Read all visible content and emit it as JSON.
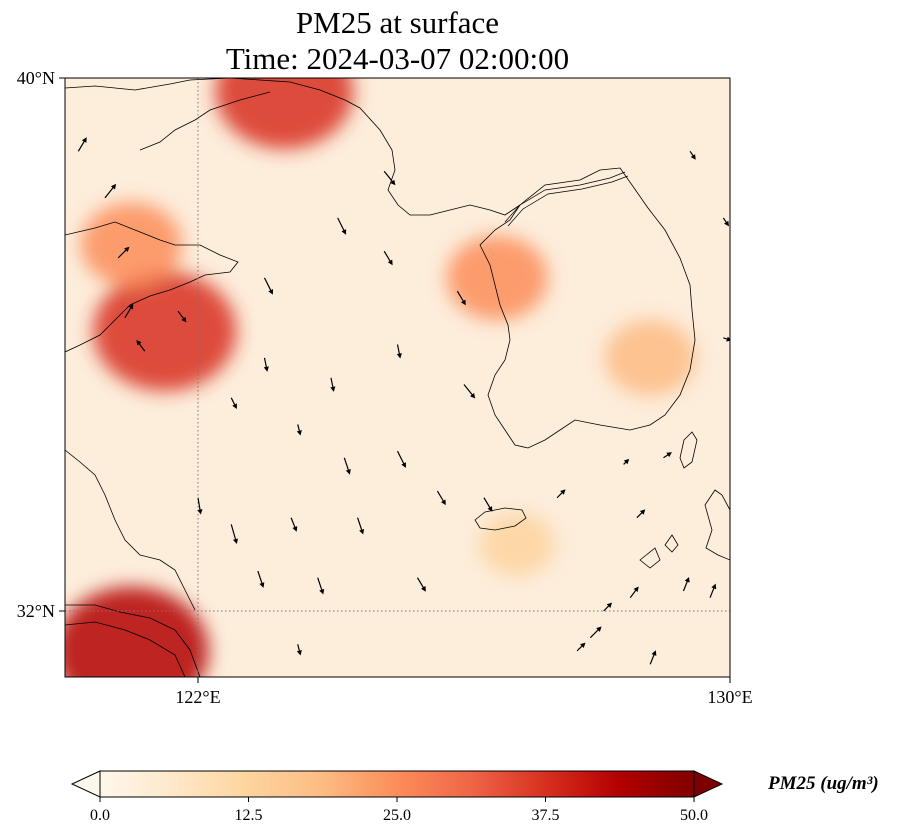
{
  "title": {
    "line1": "PM25 at surface",
    "line2": "Time: 2024-03-07 02:00:00"
  },
  "map": {
    "lon_range": [
      120,
      130
    ],
    "lat_range": [
      31,
      40
    ],
    "lon_ticks": [
      "122°E",
      "130°E"
    ],
    "lat_ticks": [
      "40°N",
      "32°N"
    ],
    "gridlines": "dotted at 122°E and 32°N"
  },
  "colorbar": {
    "label": "PM25 (ug/m³)",
    "ticks": [
      "0.0",
      "12.5",
      "25.0",
      "37.5",
      "50.0"
    ],
    "min": 0,
    "max": 50,
    "extend": "both",
    "colormap": "OrRd",
    "colors": [
      "#fff7ec",
      "#fee8c8",
      "#fdd49e",
      "#fdbb84",
      "#fc8d59",
      "#ef6548",
      "#d7301f",
      "#b30000",
      "#7f0000"
    ]
  },
  "chart_data": {
    "type": "heatmap",
    "variable": "PM25",
    "units": "ug/m3",
    "x_unit": "degrees East longitude",
    "y_unit": "degrees North latitude",
    "hotspots": [
      {
        "lon": 121.5,
        "lat": 36.2,
        "value": 38
      },
      {
        "lon": 121.0,
        "lat": 31.4,
        "value": 42
      },
      {
        "lon": 123.3,
        "lat": 39.8,
        "value": 36
      },
      {
        "lon": 121.0,
        "lat": 37.5,
        "value": 22
      },
      {
        "lon": 126.5,
        "lat": 37.0,
        "value": 22
      },
      {
        "lon": 128.8,
        "lat": 35.8,
        "value": 18
      },
      {
        "lon": 126.8,
        "lat": 33.0,
        "value": 12
      }
    ],
    "background_value": 5,
    "wind_vectors": [
      {
        "lon": 120.2,
        "lat": 38.9,
        "u": 0.3,
        "v": 0.5
      },
      {
        "lon": 120.6,
        "lat": 38.2,
        "u": 0.4,
        "v": 0.5
      },
      {
        "lon": 120.8,
        "lat": 37.3,
        "u": 0.4,
        "v": 0.4
      },
      {
        "lon": 120.9,
        "lat": 36.4,
        "u": 0.3,
        "v": 0.5
      },
      {
        "lon": 121.2,
        "lat": 35.9,
        "u": -0.3,
        "v": 0.4
      },
      {
        "lon": 121.7,
        "lat": 36.5,
        "u": 0.3,
        "v": -0.4
      },
      {
        "lon": 122.0,
        "lat": 33.7,
        "u": 0.1,
        "v": -0.6
      },
      {
        "lon": 122.5,
        "lat": 33.3,
        "u": 0.2,
        "v": -0.7
      },
      {
        "lon": 122.9,
        "lat": 32.6,
        "u": 0.2,
        "v": -0.6
      },
      {
        "lon": 122.5,
        "lat": 35.2,
        "u": 0.2,
        "v": -0.4
      },
      {
        "lon": 123.0,
        "lat": 37.0,
        "u": 0.3,
        "v": -0.6
      },
      {
        "lon": 123.0,
        "lat": 35.8,
        "u": 0.1,
        "v": -0.5
      },
      {
        "lon": 123.5,
        "lat": 34.8,
        "u": 0.1,
        "v": -0.4
      },
      {
        "lon": 123.4,
        "lat": 33.4,
        "u": 0.2,
        "v": -0.5
      },
      {
        "lon": 123.8,
        "lat": 32.5,
        "u": 0.2,
        "v": -0.6
      },
      {
        "lon": 123.5,
        "lat": 31.5,
        "u": 0.1,
        "v": -0.4
      },
      {
        "lon": 124.1,
        "lat": 37.9,
        "u": 0.3,
        "v": -0.6
      },
      {
        "lon": 124.0,
        "lat": 35.5,
        "u": 0.1,
        "v": -0.5
      },
      {
        "lon": 124.2,
        "lat": 34.3,
        "u": 0.2,
        "v": -0.6
      },
      {
        "lon": 124.4,
        "lat": 33.4,
        "u": 0.2,
        "v": -0.6
      },
      {
        "lon": 124.8,
        "lat": 38.6,
        "u": 0.4,
        "v": -0.5
      },
      {
        "lon": 124.8,
        "lat": 37.4,
        "u": 0.3,
        "v": -0.5
      },
      {
        "lon": 125.0,
        "lat": 36.0,
        "u": 0.1,
        "v": -0.5
      },
      {
        "lon": 125.0,
        "lat": 34.4,
        "u": 0.3,
        "v": -0.6
      },
      {
        "lon": 125.3,
        "lat": 32.5,
        "u": 0.3,
        "v": -0.5
      },
      {
        "lon": 125.6,
        "lat": 33.8,
        "u": 0.3,
        "v": -0.5
      },
      {
        "lon": 125.9,
        "lat": 36.8,
        "u": 0.3,
        "v": -0.5
      },
      {
        "lon": 126.0,
        "lat": 35.4,
        "u": 0.4,
        "v": -0.5
      },
      {
        "lon": 126.3,
        "lat": 33.7,
        "u": 0.3,
        "v": -0.5
      },
      {
        "lon": 127.7,
        "lat": 31.4,
        "u": 0.3,
        "v": 0.3
      },
      {
        "lon": 127.9,
        "lat": 31.6,
        "u": 0.4,
        "v": 0.4
      },
      {
        "lon": 128.1,
        "lat": 32.0,
        "u": 0.3,
        "v": 0.3
      },
      {
        "lon": 128.5,
        "lat": 32.2,
        "u": 0.3,
        "v": 0.4
      },
      {
        "lon": 129.3,
        "lat": 32.3,
        "u": 0.2,
        "v": 0.5
      },
      {
        "lon": 129.7,
        "lat": 32.2,
        "u": 0.2,
        "v": 0.5
      },
      {
        "lon": 128.8,
        "lat": 31.2,
        "u": 0.2,
        "v": 0.5
      },
      {
        "lon": 129.4,
        "lat": 38.9,
        "u": 0.2,
        "v": -0.3
      },
      {
        "lon": 129.9,
        "lat": 37.9,
        "u": 0.2,
        "v": -0.3
      },
      {
        "lon": 129.9,
        "lat": 36.1,
        "u": 0.3,
        "v": -0.1
      },
      {
        "lon": 128.4,
        "lat": 34.2,
        "u": 0.2,
        "v": 0.2
      },
      {
        "lon": 129.0,
        "lat": 34.3,
        "u": 0.3,
        "v": 0.2
      },
      {
        "lon": 128.6,
        "lat": 33.4,
        "u": 0.3,
        "v": 0.3
      },
      {
        "lon": 127.4,
        "lat": 33.7,
        "u": 0.3,
        "v": 0.3
      }
    ]
  }
}
